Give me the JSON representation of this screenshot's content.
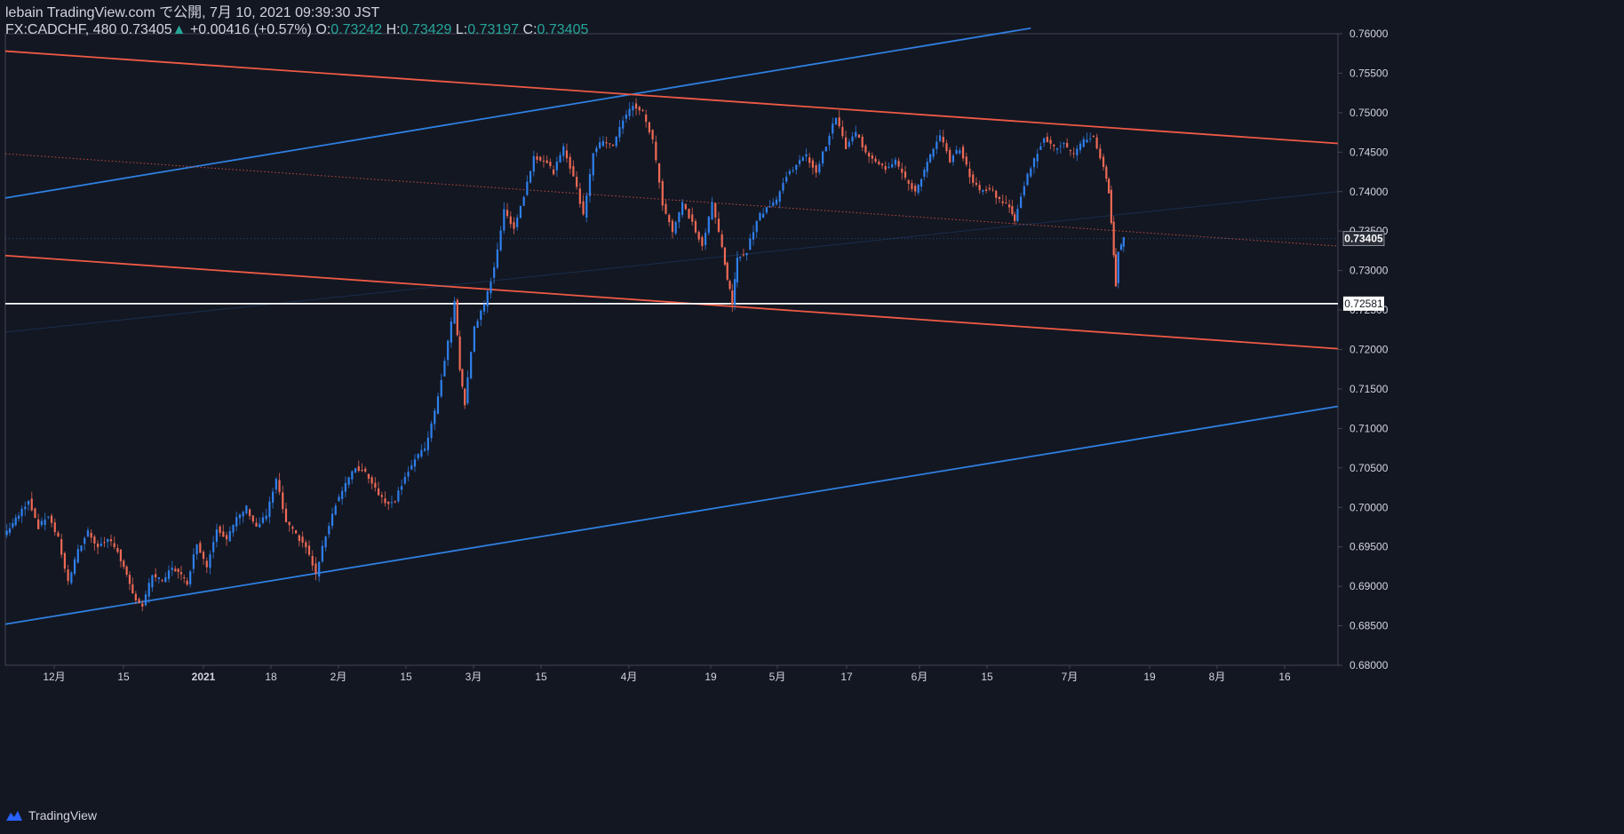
{
  "header": {
    "published": "lebain TradingView.com で公開, 7月 10, 2021 09:39:30 JST",
    "symbol_interval_price": "FX:CADCHF, 480 0.73405",
    "arrow": "▲",
    "change": "+0.00416 (+0.57%)",
    "open_label": "O:",
    "open_value": "0.73242",
    "high_label": "H:",
    "high_value": "0.73429",
    "low_label": "L:",
    "low_value": "0.73197",
    "close_label": "C:",
    "close_value": "0.73405"
  },
  "footer": {
    "brand": "TradingView",
    "logo_icon": "tradingview-logo-icon"
  },
  "colors": {
    "background": "#131722",
    "text": "#d1d4dc",
    "up": "#2f80ed",
    "down": "#ef6a55",
    "blue_line": "#2f7fe0",
    "red_line": "#ef5a45",
    "axis_border": "#434651",
    "value_green": "#26a69a"
  },
  "chart_data": {
    "type": "candlestick",
    "symbol": "FX:CADCHF",
    "interval": "480",
    "y_axis": {
      "ticks": [
        "0.76000",
        "0.75500",
        "0.75000",
        "0.74500",
        "0.74000",
        "0.73500",
        "0.73000",
        "0.72500",
        "0.72000",
        "0.71500",
        "0.71000",
        "0.70500",
        "0.70000",
        "0.69500",
        "0.69000",
        "0.68500",
        "0.68000"
      ],
      "range": [
        0.68,
        0.76
      ]
    },
    "x_axis": {
      "ticks": [
        "12月",
        "15",
        "2021",
        "18",
        "2月",
        "15",
        "3月",
        "15",
        "4月",
        "19",
        "5月",
        "17",
        "6月",
        "15",
        "7月",
        "19",
        "8月",
        "16"
      ],
      "start": "2020-11-26",
      "end": "2021-08-22"
    },
    "last_price_label": "0.73405",
    "horizontal_level_label": "0.72581",
    "horizontal_level": 0.72581,
    "trendlines": [
      {
        "name": "blue-channel-upper",
        "color": "blue",
        "style": "solid",
        "from": [
          "2020-11-26",
          0.7392
        ],
        "to": [
          "2021-06-21",
          0.7607
        ]
      },
      {
        "name": "blue-channel-lower",
        "color": "blue",
        "style": "solid",
        "from": [
          "2020-11-26",
          0.6852
        ],
        "to": [
          "2021-08-22",
          0.7128
        ]
      },
      {
        "name": "red-channel-upper",
        "color": "red",
        "style": "solid",
        "from": [
          "2020-11-26",
          0.7578
        ],
        "to": [
          "2021-08-22",
          0.7461
        ]
      },
      {
        "name": "red-channel-lower",
        "color": "red",
        "style": "solid",
        "from": [
          "2020-11-26",
          0.7319
        ],
        "to": [
          "2021-08-22",
          0.7201
        ]
      },
      {
        "name": "red-channel-mid",
        "color": "red",
        "style": "dotted",
        "from": [
          "2020-11-26",
          0.7448
        ],
        "to": [
          "2021-08-22",
          0.7331
        ]
      },
      {
        "name": "blue-channel-mid",
        "color": "blue",
        "style": "faint",
        "from": [
          "2020-11-26",
          0.7222
        ],
        "to": [
          "2021-08-22",
          0.74
        ]
      }
    ],
    "close_path": [
      [
        "2020-11-26",
        0.6965
      ],
      [
        "2020-11-29",
        0.699
      ],
      [
        "2020-12-01",
        0.701
      ],
      [
        "2020-12-03",
        0.6975
      ],
      [
        "2020-12-05",
        0.699
      ],
      [
        "2020-12-07",
        0.696
      ],
      [
        "2020-12-09",
        0.6905
      ],
      [
        "2020-12-11",
        0.6945
      ],
      [
        "2020-12-13",
        0.697
      ],
      [
        "2020-12-15",
        0.695
      ],
      [
        "2020-12-17",
        0.696
      ],
      [
        "2020-12-19",
        0.6945
      ],
      [
        "2020-12-22",
        0.689
      ],
      [
        "2020-12-24",
        0.6875
      ],
      [
        "2020-12-26",
        0.6915
      ],
      [
        "2020-12-28",
        0.6905
      ],
      [
        "2020-12-30",
        0.6925
      ],
      [
        "2021-01-02",
        0.6905
      ],
      [
        "2021-01-04",
        0.6955
      ],
      [
        "2021-01-06",
        0.6925
      ],
      [
        "2021-01-08",
        0.6975
      ],
      [
        "2021-01-10",
        0.696
      ],
      [
        "2021-01-12",
        0.6985
      ],
      [
        "2021-01-14",
        0.7
      ],
      [
        "2021-01-16",
        0.6975
      ],
      [
        "2021-01-18",
        0.699
      ],
      [
        "2021-01-20",
        0.7035
      ],
      [
        "2021-01-22",
        0.698
      ],
      [
        "2021-01-24",
        0.6965
      ],
      [
        "2021-01-26",
        0.695
      ],
      [
        "2021-01-28",
        0.6915
      ],
      [
        "2021-01-30",
        0.6965
      ],
      [
        "2021-02-01",
        0.7005
      ],
      [
        "2021-02-03",
        0.703
      ],
      [
        "2021-02-05",
        0.705
      ],
      [
        "2021-02-07",
        0.7045
      ],
      [
        "2021-02-09",
        0.7025
      ],
      [
        "2021-02-11",
        0.7005
      ],
      [
        "2021-02-13",
        0.701
      ],
      [
        "2021-02-15",
        0.704
      ],
      [
        "2021-02-17",
        0.706
      ],
      [
        "2021-02-19",
        0.7075
      ],
      [
        "2021-02-21",
        0.712
      ],
      [
        "2021-02-23",
        0.7185
      ],
      [
        "2021-02-25",
        0.726
      ],
      [
        "2021-02-26",
        0.7175
      ],
      [
        "2021-02-27",
        0.713
      ],
      [
        "2021-03-01",
        0.723
      ],
      [
        "2021-03-03",
        0.7255
      ],
      [
        "2021-03-05",
        0.7305
      ],
      [
        "2021-03-07",
        0.7375
      ],
      [
        "2021-03-09",
        0.7355
      ],
      [
        "2021-03-11",
        0.7395
      ],
      [
        "2021-03-13",
        0.7445
      ],
      [
        "2021-03-15",
        0.744
      ],
      [
        "2021-03-17",
        0.7425
      ],
      [
        "2021-03-19",
        0.7455
      ],
      [
        "2021-03-21",
        0.742
      ],
      [
        "2021-03-23",
        0.737
      ],
      [
        "2021-03-25",
        0.745
      ],
      [
        "2021-03-27",
        0.7465
      ],
      [
        "2021-03-29",
        0.746
      ],
      [
        "2021-03-31",
        0.749
      ],
      [
        "2021-04-02",
        0.751
      ],
      [
        "2021-04-04",
        0.75
      ],
      [
        "2021-04-06",
        0.7465
      ],
      [
        "2021-04-08",
        0.7385
      ],
      [
        "2021-04-10",
        0.735
      ],
      [
        "2021-04-12",
        0.7385
      ],
      [
        "2021-04-14",
        0.736
      ],
      [
        "2021-04-16",
        0.733
      ],
      [
        "2021-04-18",
        0.7385
      ],
      [
        "2021-04-20",
        0.733
      ],
      [
        "2021-04-21",
        0.729
      ],
      [
        "2021-04-22",
        0.7258
      ],
      [
        "2021-04-23",
        0.7315
      ],
      [
        "2021-04-25",
        0.7325
      ],
      [
        "2021-04-27",
        0.7365
      ],
      [
        "2021-04-29",
        0.738
      ],
      [
        "2021-05-01",
        0.739
      ],
      [
        "2021-05-03",
        0.742
      ],
      [
        "2021-05-05",
        0.7435
      ],
      [
        "2021-05-07",
        0.7445
      ],
      [
        "2021-05-09",
        0.7425
      ],
      [
        "2021-05-11",
        0.746
      ],
      [
        "2021-05-13",
        0.7495
      ],
      [
        "2021-05-15",
        0.7455
      ],
      [
        "2021-05-17",
        0.7475
      ],
      [
        "2021-05-19",
        0.745
      ],
      [
        "2021-05-21",
        0.744
      ],
      [
        "2021-05-23",
        0.743
      ],
      [
        "2021-05-25",
        0.744
      ],
      [
        "2021-05-27",
        0.7415
      ],
      [
        "2021-05-29",
        0.74
      ],
      [
        "2021-06-01",
        0.7445
      ],
      [
        "2021-06-03",
        0.747
      ],
      [
        "2021-06-05",
        0.744
      ],
      [
        "2021-06-07",
        0.7455
      ],
      [
        "2021-06-09",
        0.742
      ],
      [
        "2021-06-11",
        0.74
      ],
      [
        "2021-06-13",
        0.7405
      ],
      [
        "2021-06-15",
        0.739
      ],
      [
        "2021-06-17",
        0.738
      ],
      [
        "2021-06-18",
        0.7365
      ],
      [
        "2021-06-20",
        0.741
      ],
      [
        "2021-06-22",
        0.744
      ],
      [
        "2021-06-24",
        0.747
      ],
      [
        "2021-06-26",
        0.7455
      ],
      [
        "2021-06-28",
        0.746
      ],
      [
        "2021-06-30",
        0.7445
      ],
      [
        "2021-07-02",
        0.7465
      ],
      [
        "2021-07-04",
        0.747
      ],
      [
        "2021-07-06",
        0.743
      ],
      [
        "2021-07-07",
        0.74
      ],
      [
        "2021-07-08",
        0.732
      ],
      [
        "2021-07-08T08",
        0.7282
      ],
      [
        "2021-07-09",
        0.7325
      ],
      [
        "2021-07-10",
        0.73405
      ]
    ]
  }
}
